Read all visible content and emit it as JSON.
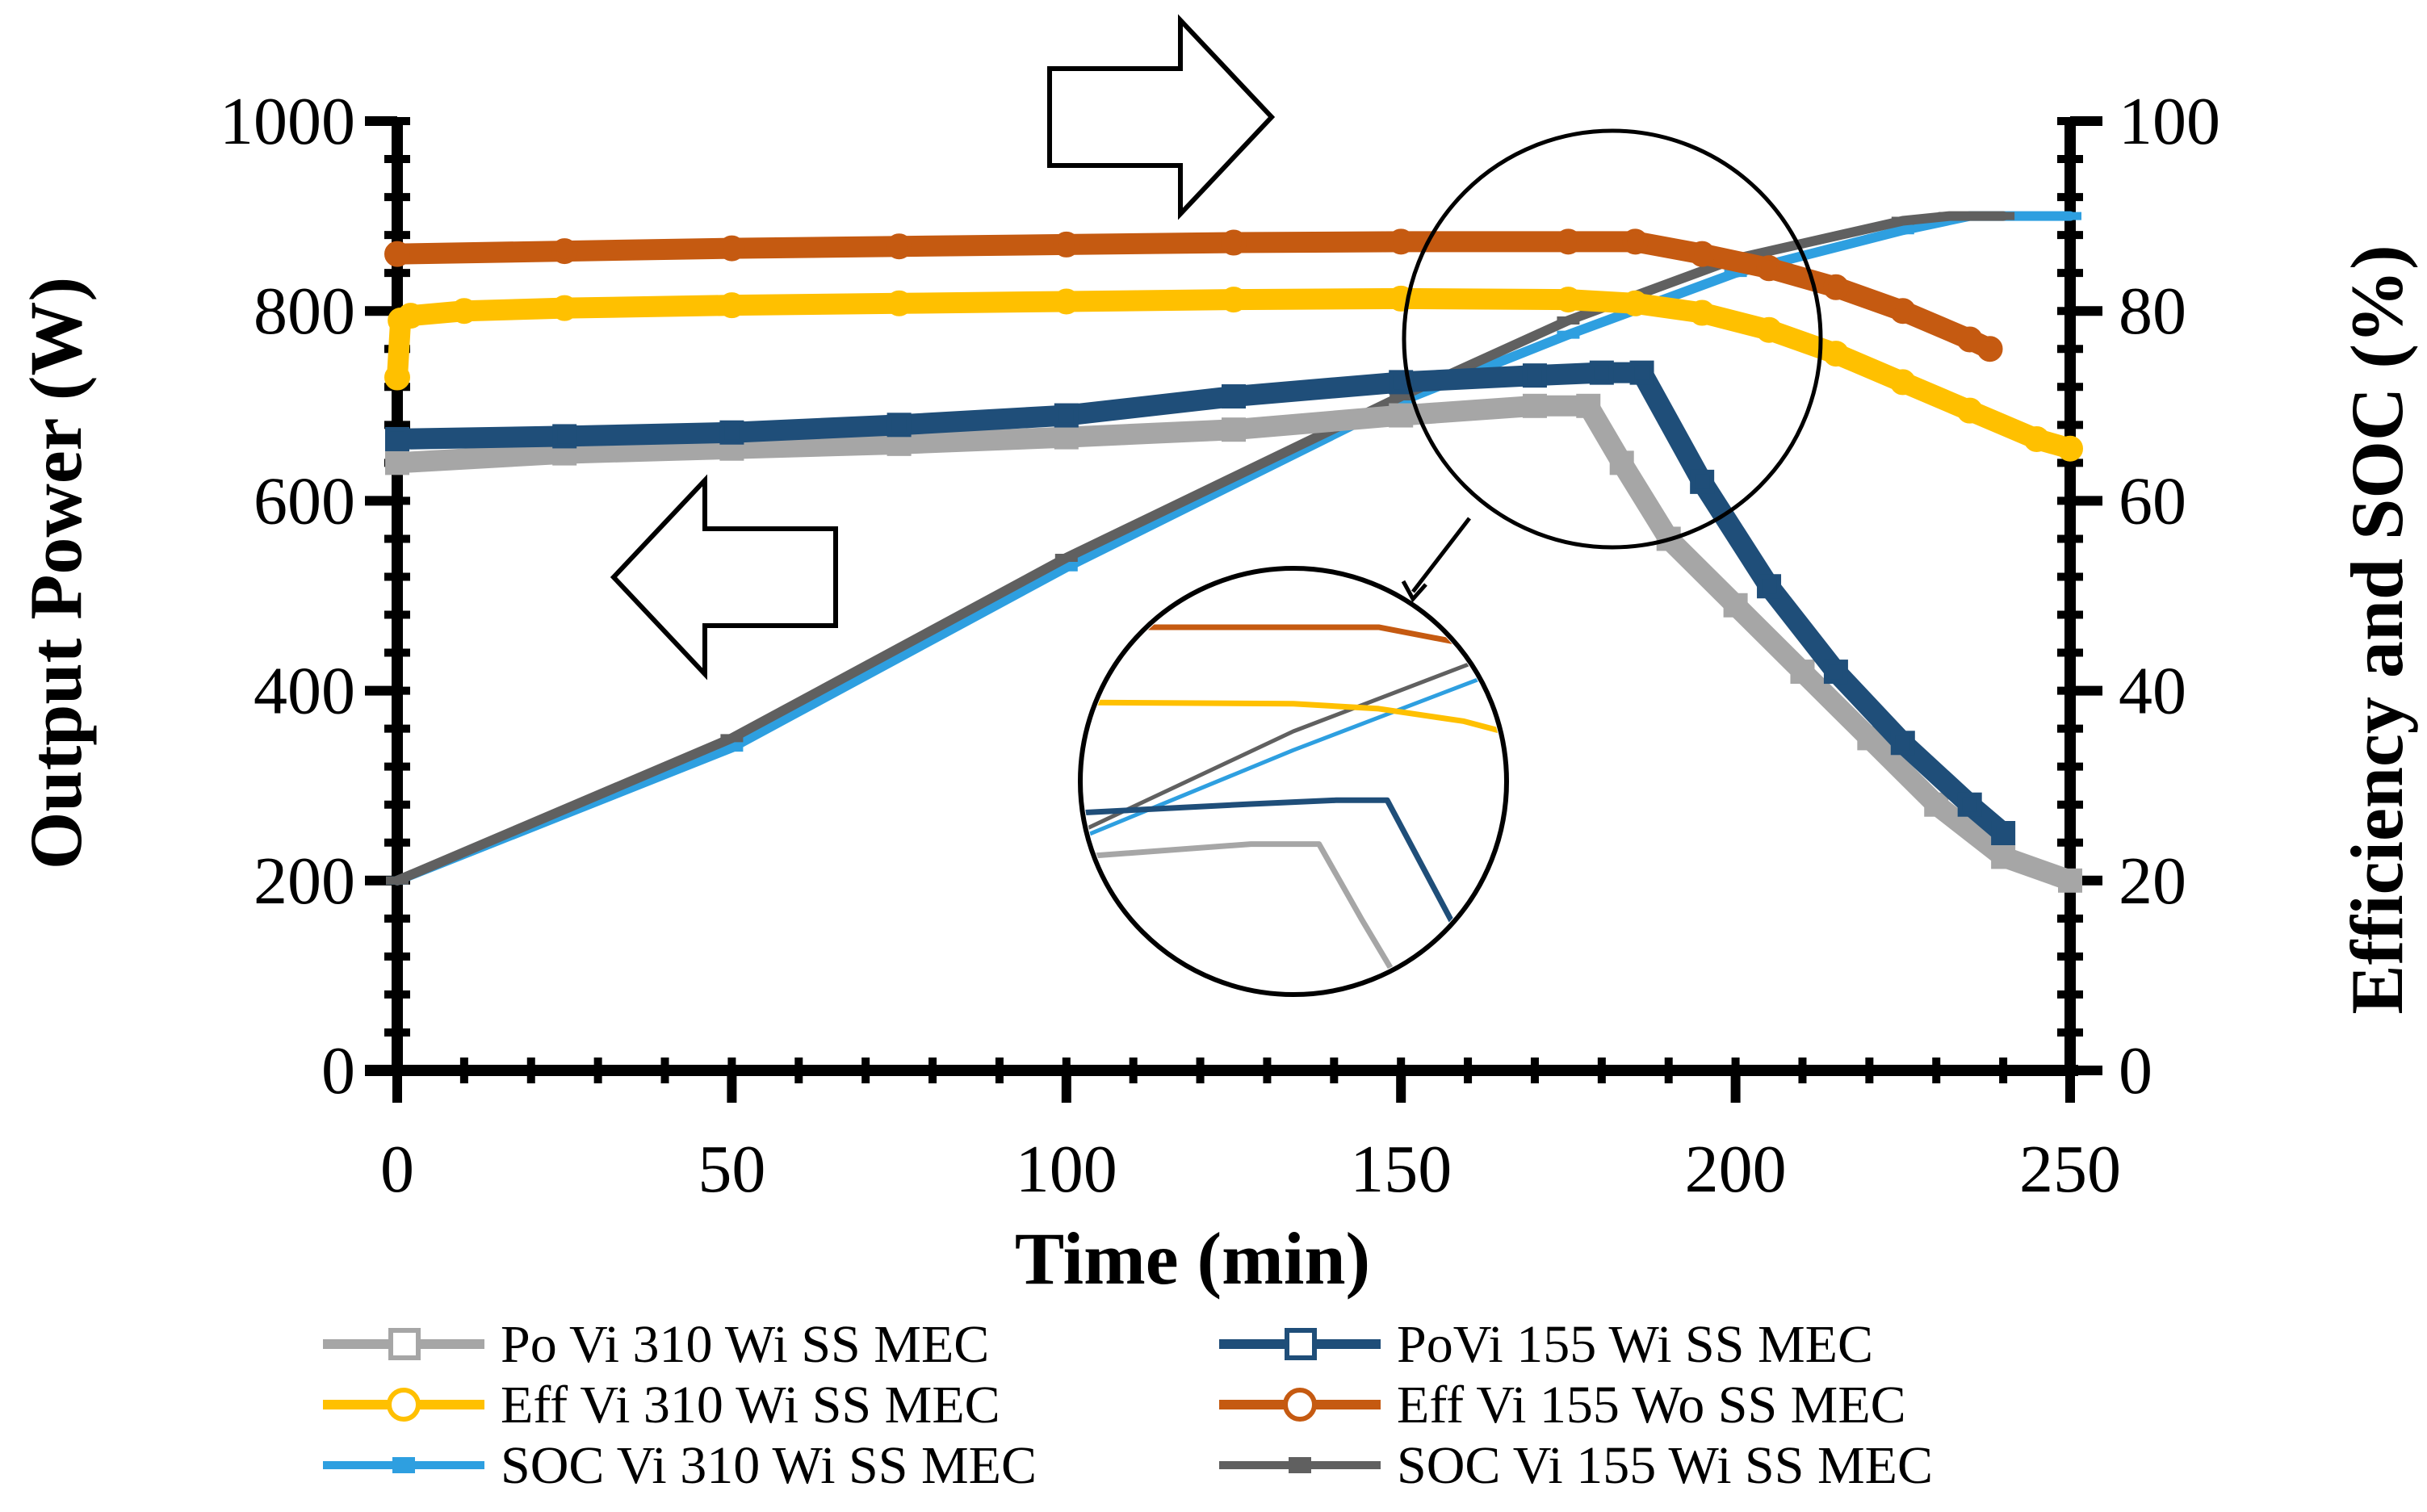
{
  "chart_data": {
    "type": "line",
    "title": "",
    "xlabel": "Time (min)",
    "ylabel_left": "Output Power (W)",
    "ylabel_right": "Efficiency and SOC (%)",
    "xlim": [
      0,
      250
    ],
    "ylim_left": [
      0,
      1000
    ],
    "ylim_right": [
      0,
      100
    ],
    "xticks": [
      "0",
      "50",
      "100",
      "150",
      "200",
      "250"
    ],
    "yticks_left": [
      "0",
      "200",
      "400",
      "600",
      "800",
      "1000"
    ],
    "yticks_right": [
      "0",
      "20",
      "40",
      "60",
      "80",
      "100"
    ],
    "grid": false,
    "legend_position": "bottom",
    "annotations": [
      "right arrow pointing to right axis",
      "left arrow pointing to left axis",
      "circled zoom inset near t = 150–200 min"
    ],
    "series": [
      {
        "name": "Po Vi 310 Wi SS MEC",
        "axis": "left",
        "color": "#a6a6a6",
        "marker": "square",
        "x": [
          0,
          25,
          50,
          75,
          100,
          125,
          150,
          170,
          178,
          183,
          190,
          200,
          210,
          220,
          230,
          240,
          250
        ],
        "y": [
          640,
          650,
          655,
          660,
          667,
          675,
          690,
          700,
          700,
          640,
          560,
          490,
          420,
          350,
          280,
          225,
          200
        ]
      },
      {
        "name": "PoVi 155 Wi SS MEC",
        "axis": "left",
        "color": "#1f4e79",
        "marker": "square",
        "x": [
          0,
          25,
          50,
          75,
          100,
          125,
          150,
          170,
          180,
          186,
          195,
          205,
          215,
          225,
          235,
          240
        ],
        "y": [
          665,
          668,
          672,
          680,
          690,
          710,
          725,
          732,
          735,
          735,
          620,
          510,
          420,
          345,
          280,
          250
        ]
      },
      {
        "name": "Eff Vi 310 Wi SS MEC",
        "axis": "right",
        "color": "#ffc000",
        "marker": "circle",
        "x": [
          0,
          0.5,
          2,
          10,
          25,
          50,
          75,
          100,
          125,
          150,
          175,
          185,
          195,
          205,
          215,
          225,
          235,
          245,
          250
        ],
        "y": [
          73,
          79,
          79.5,
          80,
          80.3,
          80.6,
          80.8,
          81,
          81.2,
          81.3,
          81.2,
          80.8,
          79.8,
          78,
          75.5,
          72.5,
          69.5,
          66.5,
          65.5
        ]
      },
      {
        "name": "Eff Vi 155 Wo SS MEC",
        "axis": "right",
        "color": "#c55a11",
        "marker": "circle",
        "x": [
          0,
          25,
          50,
          75,
          100,
          125,
          150,
          175,
          185,
          195,
          205,
          215,
          225,
          235,
          238
        ],
        "y": [
          86,
          86.3,
          86.6,
          86.8,
          87,
          87.2,
          87.3,
          87.3,
          87.3,
          86,
          84.5,
          82.5,
          80,
          77,
          76
        ]
      },
      {
        "name": "SOC Vi 310 Wi SS MEC",
        "axis": "right",
        "color": "#2e9fe0",
        "marker": "dash",
        "x": [
          0,
          50,
          100,
          150,
          175,
          200,
          225,
          235,
          250
        ],
        "y": [
          20,
          34,
          53,
          70.5,
          77.5,
          84,
          88.5,
          90,
          90
        ]
      },
      {
        "name": "SOC Vi 155 Wi SS MEC",
        "axis": "right",
        "color": "#606060",
        "marker": "dash",
        "x": [
          0,
          50,
          100,
          150,
          175,
          200,
          225,
          232,
          240
        ],
        "y": [
          20,
          35,
          54,
          71,
          79,
          85.5,
          89.5,
          90,
          90
        ]
      }
    ]
  }
}
